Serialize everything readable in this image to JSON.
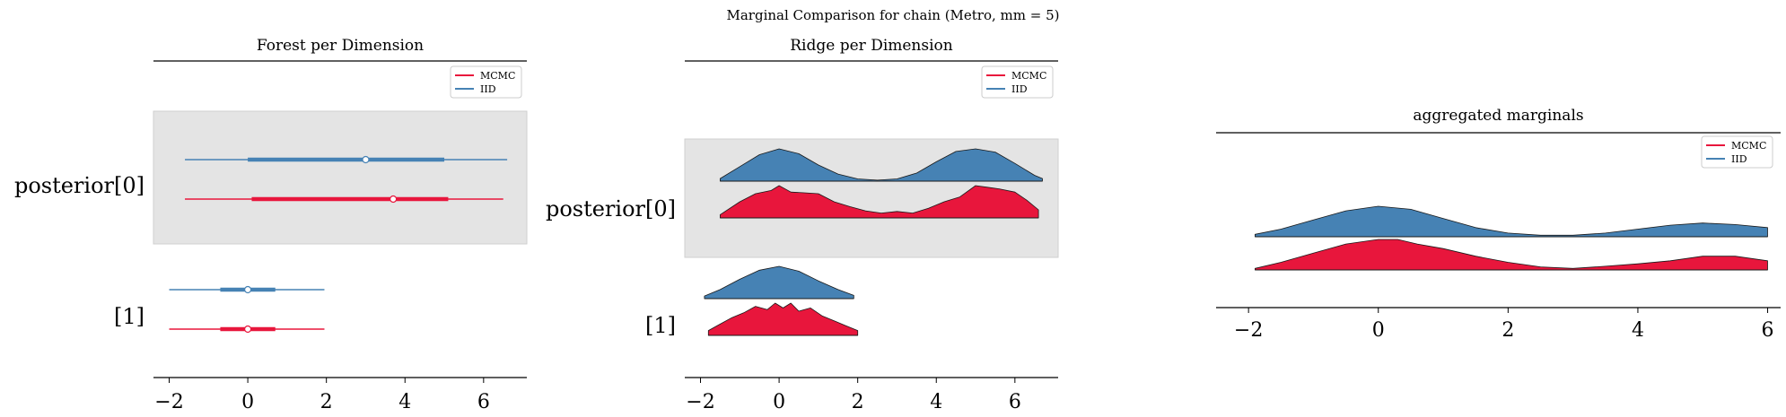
{
  "suptitle": "Marginal Comparison for chain (Metro, mm = 5)",
  "colors": {
    "mcmc": "#e8163c",
    "iid": "#4682b4",
    "band": "#e4e4e4",
    "axis": "#000000"
  },
  "chart_data": [
    {
      "type": "forest",
      "title": "Forest per Dimension",
      "legend": {
        "placement": "top-right",
        "entries": [
          "MCMC",
          "IID"
        ]
      },
      "y_labels": [
        "posterior[0]",
        "[1]"
      ],
      "xlim": [
        -2.4,
        7.1
      ],
      "xticks": [
        -2,
        0,
        2,
        4,
        6
      ],
      "xtick_labels": [
        "−2",
        "0",
        "2",
        "4",
        "6"
      ],
      "series": [
        {
          "name": "IID",
          "dim": 0,
          "low": -1.6,
          "q25": 0.0,
          "median": 3.0,
          "q75": 5.0,
          "high": 6.6
        },
        {
          "name": "MCMC",
          "dim": 0,
          "low": -1.6,
          "q25": 0.1,
          "median": 3.7,
          "q75": 5.1,
          "high": 6.5
        },
        {
          "name": "IID",
          "dim": 1,
          "low": -2.0,
          "q25": -0.7,
          "median": 0.0,
          "q75": 0.7,
          "high": 1.95
        },
        {
          "name": "MCMC",
          "dim": 1,
          "low": -2.0,
          "q25": -0.7,
          "median": 0.0,
          "q75": 0.7,
          "high": 1.95
        }
      ]
    },
    {
      "type": "ridge",
      "title": "Ridge per Dimension",
      "legend": {
        "placement": "top-right",
        "entries": [
          "MCMC",
          "IID"
        ]
      },
      "y_labels": [
        "posterior[0]",
        "[1]"
      ],
      "xlim": [
        -2.4,
        7.1
      ],
      "xticks": [
        -2,
        0,
        2,
        4,
        6
      ],
      "xtick_labels": [
        "−2",
        "0",
        "2",
        "4",
        "6"
      ],
      "series": [
        {
          "name": "IID",
          "dim": 0,
          "x": [
            -1.5,
            -1.0,
            -0.5,
            0.0,
            0.5,
            1.0,
            1.5,
            2.0,
            2.5,
            3.0,
            3.5,
            4.0,
            4.5,
            5.0,
            5.5,
            6.0,
            6.5,
            6.7
          ],
          "y": [
            0.08,
            0.45,
            0.82,
            1.0,
            0.85,
            0.5,
            0.22,
            0.07,
            0.03,
            0.07,
            0.25,
            0.6,
            0.92,
            1.0,
            0.9,
            0.55,
            0.18,
            0.08
          ]
        },
        {
          "name": "MCMC",
          "dim": 0,
          "x": [
            -1.5,
            -1.0,
            -0.6,
            -0.2,
            0.0,
            0.3,
            0.6,
            1.0,
            1.4,
            1.8,
            2.2,
            2.6,
            3.0,
            3.4,
            3.8,
            4.2,
            4.6,
            5.0,
            5.3,
            5.6,
            6.0,
            6.3,
            6.6
          ],
          "y": [
            0.1,
            0.5,
            0.75,
            0.85,
            1.0,
            0.8,
            0.78,
            0.75,
            0.5,
            0.35,
            0.22,
            0.15,
            0.2,
            0.15,
            0.3,
            0.5,
            0.65,
            1.0,
            0.95,
            0.9,
            0.8,
            0.55,
            0.25
          ]
        },
        {
          "name": "IID",
          "dim": 1,
          "x": [
            -1.9,
            -1.5,
            -1.0,
            -0.5,
            0.0,
            0.5,
            1.0,
            1.5,
            1.9
          ],
          "y": [
            0.08,
            0.28,
            0.6,
            0.88,
            1.0,
            0.85,
            0.55,
            0.28,
            0.1
          ]
        },
        {
          "name": "MCMC",
          "dim": 1,
          "x": [
            -1.8,
            -1.5,
            -1.2,
            -0.9,
            -0.6,
            -0.3,
            -0.1,
            0.1,
            0.3,
            0.5,
            0.8,
            1.1,
            1.4,
            1.7,
            2.0
          ],
          "y": [
            0.15,
            0.35,
            0.55,
            0.7,
            0.9,
            0.8,
            1.0,
            0.85,
            1.0,
            0.75,
            0.85,
            0.6,
            0.45,
            0.3,
            0.15
          ]
        }
      ]
    },
    {
      "type": "ridge",
      "title": "aggregated marginals",
      "legend": {
        "placement": "top-right",
        "entries": [
          "MCMC",
          "IID"
        ]
      },
      "y_labels": [],
      "xlim": [
        -2.5,
        6.2
      ],
      "xticks": [
        -2,
        0,
        2,
        4,
        6
      ],
      "xtick_labels": [
        "−2",
        "0",
        "2",
        "4",
        "6"
      ],
      "series": [
        {
          "name": "IID",
          "dim": 0,
          "x": [
            -1.9,
            -1.5,
            -1.0,
            -0.5,
            0.0,
            0.5,
            1.0,
            1.5,
            2.0,
            2.5,
            3.0,
            3.5,
            4.0,
            4.5,
            5.0,
            5.5,
            6.0
          ],
          "y": [
            0.08,
            0.25,
            0.55,
            0.85,
            1.0,
            0.9,
            0.6,
            0.3,
            0.12,
            0.05,
            0.05,
            0.12,
            0.25,
            0.38,
            0.45,
            0.4,
            0.3
          ]
        },
        {
          "name": "MCMC",
          "dim": 1,
          "x": [
            -1.9,
            -1.5,
            -1.0,
            -0.5,
            0.0,
            0.3,
            0.6,
            1.0,
            1.5,
            2.0,
            2.5,
            3.0,
            3.5,
            4.0,
            4.5,
            5.0,
            5.5,
            6.0
          ],
          "y": [
            0.05,
            0.25,
            0.55,
            0.85,
            1.0,
            1.0,
            0.85,
            0.7,
            0.45,
            0.25,
            0.1,
            0.05,
            0.12,
            0.2,
            0.3,
            0.45,
            0.45,
            0.3
          ]
        }
      ]
    }
  ]
}
